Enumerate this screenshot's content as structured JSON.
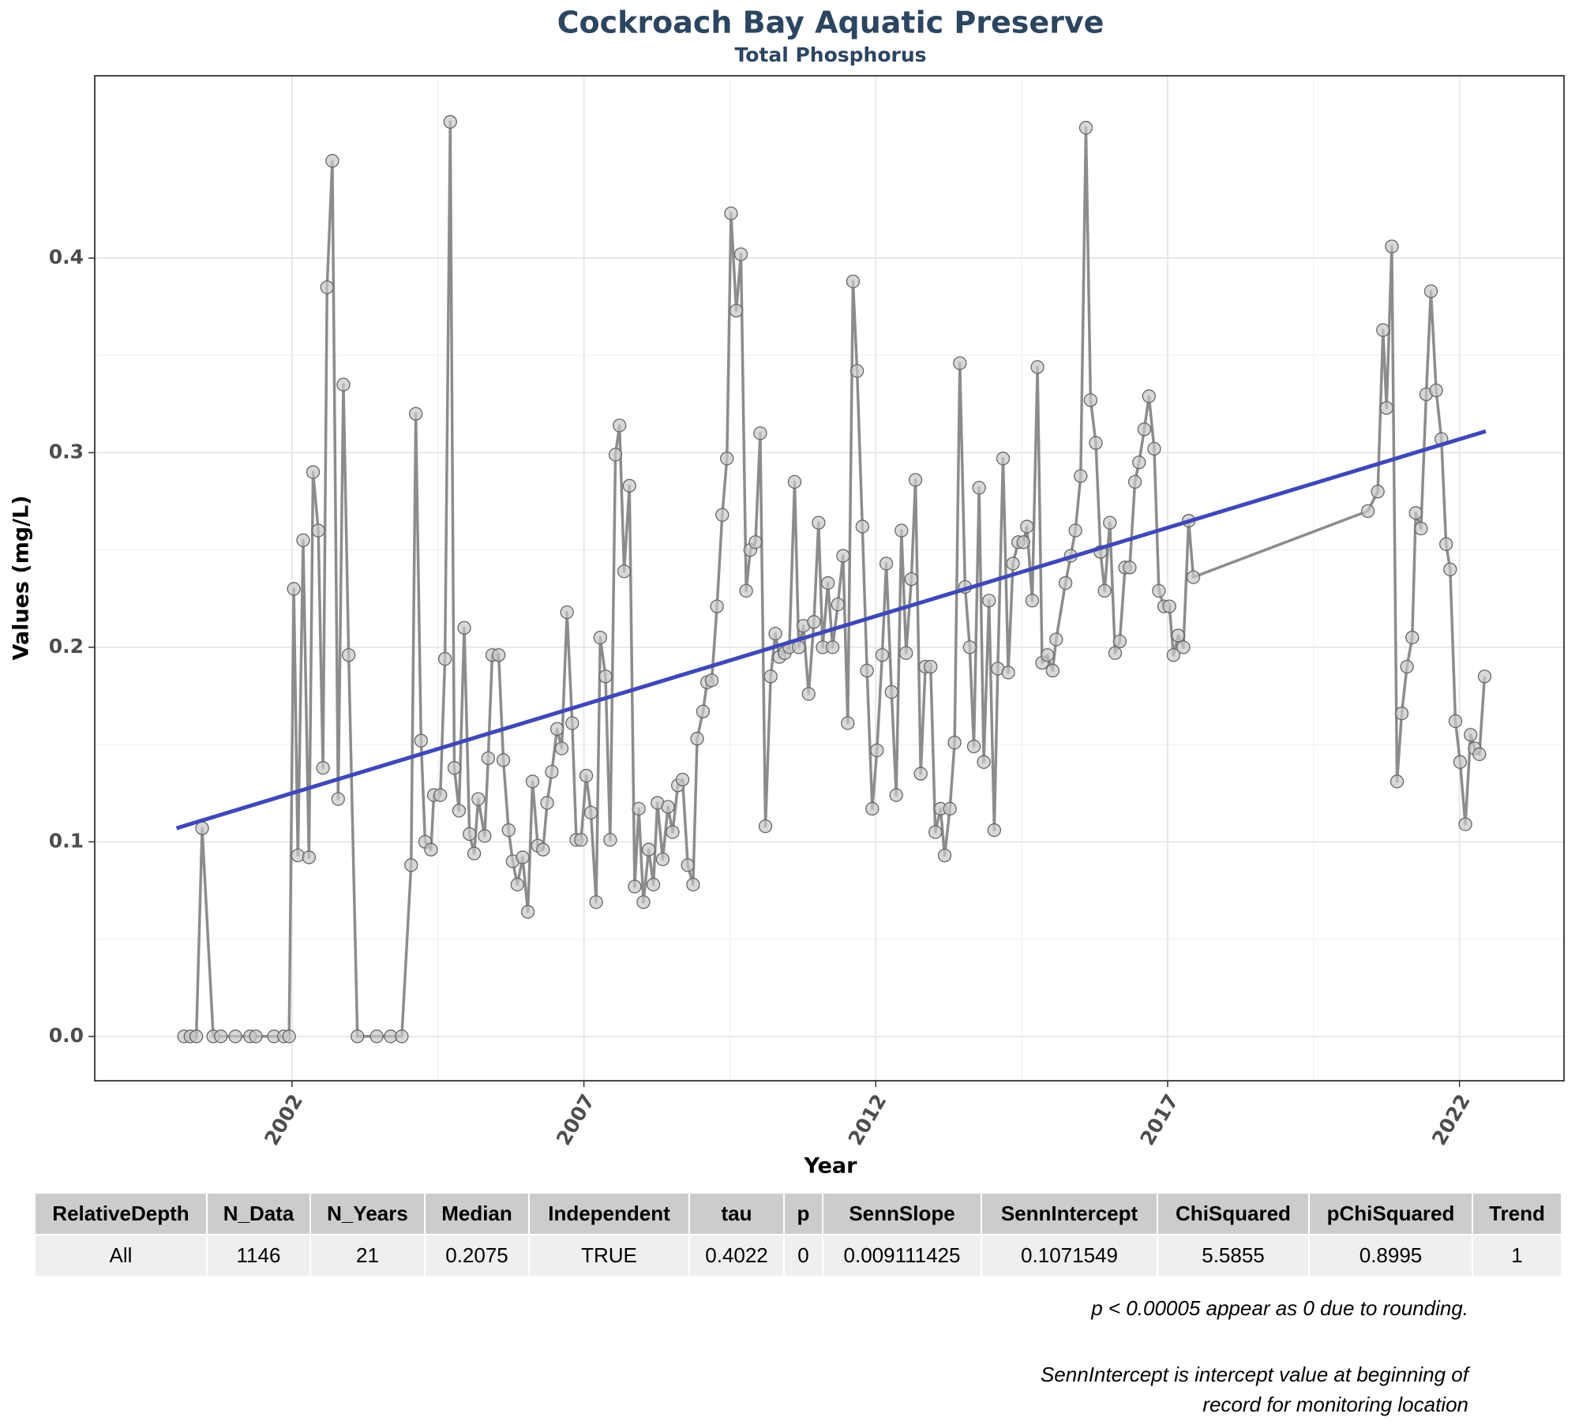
{
  "chart_data": {
    "type": "line",
    "title": "Cockroach Bay Aquatic Preserve",
    "subtitle": "Total Phosphorus",
    "x_label": "Year",
    "y_label": "Values (mg/L)",
    "color": "#8c8c8c",
    "grid": true,
    "xlim": [
      1998.62,
      2023.79
    ],
    "ylim": [
      -0.0228,
      0.4937
    ],
    "xticks": [
      2002,
      2007,
      2012,
      2017,
      2022
    ],
    "yticks": [
      {
        "value": 0,
        "label": "0.0"
      },
      0.1,
      0.2,
      0.3,
      0.4
    ],
    "x": [
      2000.15,
      2000.26,
      2000.36,
      2000.46,
      2000.65,
      2000.78,
      2001.03,
      2001.28,
      2001.38,
      2001.69,
      2001.86,
      2001.95,
      2002.03,
      2002.1,
      2002.19,
      2002.29,
      2002.36,
      2002.45,
      2002.53,
      2002.6,
      2002.69,
      2002.79,
      2002.88,
      2002.97,
      2003.12,
      2003.45,
      2003.69,
      2003.88,
      2004.04,
      2004.12,
      2004.21,
      2004.28,
      2004.38,
      2004.43,
      2004.54,
      2004.62,
      2004.71,
      2004.78,
      2004.86,
      2004.95,
      2005.04,
      2005.12,
      2005.19,
      2005.3,
      2005.36,
      2005.43,
      2005.54,
      2005.62,
      2005.71,
      2005.78,
      2005.86,
      2005.95,
      2006.04,
      2006.12,
      2006.21,
      2006.3,
      2006.37,
      2006.45,
      2006.54,
      2006.62,
      2006.71,
      2006.8,
      2006.87,
      2006.95,
      2007.04,
      2007.12,
      2007.21,
      2007.28,
      2007.37,
      2007.45,
      2007.54,
      2007.61,
      2007.69,
      2007.78,
      2007.87,
      2007.94,
      2008.02,
      2008.11,
      2008.19,
      2008.26,
      2008.35,
      2008.44,
      2008.52,
      2008.61,
      2008.69,
      2008.78,
      2008.87,
      2008.94,
      2009.04,
      2009.11,
      2009.19,
      2009.28,
      2009.37,
      2009.45,
      2009.52,
      2009.61,
      2009.69,
      2009.78,
      2009.85,
      2009.94,
      2010.02,
      2010.11,
      2010.2,
      2010.28,
      2010.35,
      2010.44,
      2010.52,
      2010.61,
      2010.68,
      2010.76,
      2010.85,
      2010.94,
      2011.02,
      2011.09,
      2011.18,
      2011.26,
      2011.35,
      2011.44,
      2011.52,
      2011.61,
      2011.68,
      2011.77,
      2011.85,
      2011.94,
      2012.02,
      2012.11,
      2012.18,
      2012.27,
      2012.35,
      2012.44,
      2012.52,
      2012.61,
      2012.68,
      2012.77,
      2012.85,
      2012.94,
      2013.02,
      2013.11,
      2013.18,
      2013.27,
      2013.35,
      2013.44,
      2013.53,
      2013.61,
      2013.68,
      2013.77,
      2013.85,
      2013.94,
      2014.03,
      2014.09,
      2014.18,
      2014.27,
      2014.35,
      2014.44,
      2014.53,
      2014.59,
      2014.68,
      2014.77,
      2014.85,
      2014.94,
      2015.03,
      2015.09,
      2015.25,
      2015.34,
      2015.42,
      2015.51,
      2015.6,
      2015.68,
      2015.77,
      2015.85,
      2015.92,
      2016.01,
      2016.1,
      2016.18,
      2016.27,
      2016.35,
      2016.44,
      2016.51,
      2016.6,
      2016.68,
      2016.77,
      2016.85,
      2016.94,
      2017.03,
      2017.1,
      2017.18,
      2017.27,
      2017.36,
      2017.44,
      2020.43,
      2020.6,
      2020.69,
      2020.75,
      2020.84,
      2020.93,
      2021.01,
      2021.1,
      2021.19,
      2021.25,
      2021.34,
      2021.43,
      2021.51,
      2021.6,
      2021.69,
      2021.77,
      2021.84,
      2021.93,
      2022.01,
      2022.1,
      2022.19,
      2022.26,
      2022.34,
      2022.43
    ],
    "values": [
      0,
      0,
      0,
      0.107,
      0,
      0,
      0,
      0,
      0,
      0,
      0,
      0,
      0.23,
      0.093,
      0.255,
      0.092,
      0.29,
      0.26,
      0.138,
      0.385,
      0.45,
      0.122,
      0.335,
      0.196,
      0,
      0,
      0,
      0,
      0.088,
      0.32,
      0.152,
      0.1,
      0.096,
      0.124,
      0.124,
      0.194,
      0.47,
      0.138,
      0.116,
      0.21,
      0.104,
      0.094,
      0.122,
      0.103,
      0.143,
      0.196,
      0.196,
      0.142,
      0.106,
      0.09,
      0.078,
      0.092,
      0.064,
      0.131,
      0.098,
      0.096,
      0.12,
      0.136,
      0.158,
      0.148,
      0.218,
      0.161,
      0.101,
      0.101,
      0.134,
      0.115,
      0.069,
      0.205,
      0.185,
      0.101,
      0.299,
      0.314,
      0.239,
      0.283,
      0.077,
      0.117,
      0.069,
      0.096,
      0.078,
      0.12,
      0.091,
      0.118,
      0.105,
      0.129,
      0.132,
      0.088,
      0.078,
      0.153,
      0.167,
      0.182,
      0.183,
      0.221,
      0.268,
      0.297,
      0.423,
      0.373,
      0.402,
      0.229,
      0.25,
      0.254,
      0.31,
      0.108,
      0.185,
      0.207,
      0.195,
      0.197,
      0.2,
      0.285,
      0.2,
      0.211,
      0.176,
      0.213,
      0.264,
      0.2,
      0.233,
      0.2,
      0.222,
      0.247,
      0.161,
      0.388,
      0.342,
      0.262,
      0.188,
      0.117,
      0.147,
      0.196,
      0.243,
      0.177,
      0.124,
      0.26,
      0.197,
      0.235,
      0.286,
      0.135,
      0.19,
      0.19,
      0.105,
      0.117,
      0.093,
      0.117,
      0.151,
      0.346,
      0.231,
      0.2,
      0.149,
      0.282,
      0.141,
      0.224,
      0.106,
      0.189,
      0.297,
      0.187,
      0.243,
      0.254,
      0.254,
      0.262,
      0.224,
      0.344,
      0.192,
      0.196,
      0.188,
      0.204,
      0.233,
      0.247,
      0.26,
      0.288,
      0.467,
      0.327,
      0.305,
      0.249,
      0.229,
      0.264,
      0.197,
      0.203,
      0.241,
      0.241,
      0.285,
      0.295,
      0.312,
      0.329,
      0.302,
      0.229,
      0.221,
      0.221,
      0.196,
      0.206,
      0.2,
      0.265,
      0.236,
      0.27,
      0.28,
      0.363,
      0.323,
      0.406,
      0.131,
      0.166,
      0.19,
      0.205,
      0.269,
      0.261,
      0.33,
      0.383,
      0.332,
      0.307,
      0.253,
      0.24,
      0.162,
      0.141,
      0.109,
      0.155,
      0.148,
      0.145,
      0.185
    ],
    "trend": {
      "color": "#3f48b8",
      "x": [
        2000.02,
        2022.45
      ],
      "values": [
        0.107,
        0.311
      ]
    }
  },
  "table": {
    "header": [
      "RelativeDepth",
      "N_Data",
      "N_Years",
      "Median",
      "Independent",
      "tau",
      "p",
      "SennSlope",
      "SennIntercept",
      "ChiSquared",
      "pChiSquared",
      "Trend"
    ],
    "rows": [
      [
        "All",
        "1146",
        "21",
        "0.2075",
        "TRUE",
        "0.4022",
        "0",
        "0.009111425",
        "0.1071549",
        "5.5855",
        "0.8995",
        "1"
      ]
    ]
  },
  "notes": [
    "p < 0.00005 appear as 0 due to rounding.",
    "SennIntercept is intercept value at beginning of record for monitoring location"
  ]
}
